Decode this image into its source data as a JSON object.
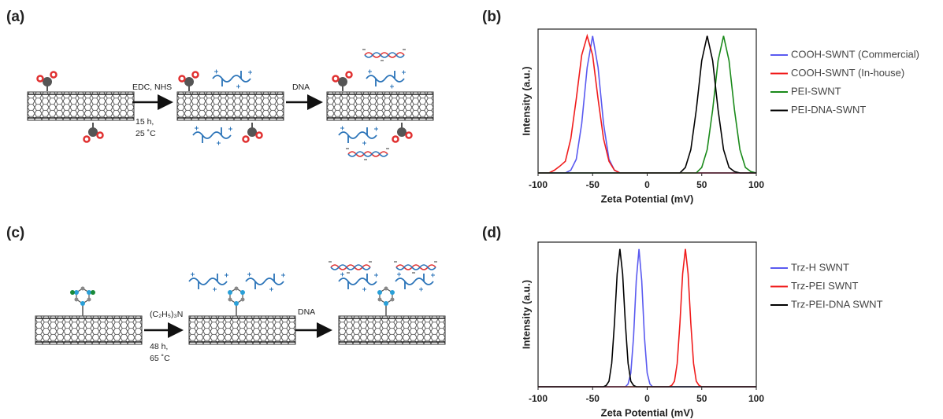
{
  "panels": {
    "a": "(a)",
    "b": "(b)",
    "c": "(c)",
    "d": "(d)"
  },
  "scheme_a": {
    "reagent": "EDC, NHS",
    "time": "15 h,",
    "temp": "25 ˚C",
    "step2": "DNA"
  },
  "scheme_c": {
    "reagent": "(C₂H₅)₃N",
    "time": "48 h,",
    "temp": "65 ˚C",
    "step2": "DNA"
  },
  "chart_data": [
    {
      "type": "line",
      "x_label": "Zeta Potential (mV)",
      "y_label": "Intensity (a.u.)",
      "x": [
        -100,
        -95,
        -90,
        -85,
        -80,
        -75,
        -70,
        -65,
        -60,
        -55,
        -50,
        -45,
        -40,
        -35,
        -30,
        -25,
        -20,
        -15,
        -10,
        -5,
        0,
        5,
        10,
        15,
        20,
        25,
        30,
        35,
        40,
        45,
        50,
        55,
        60,
        65,
        70,
        75,
        80,
        85,
        90,
        95,
        100
      ],
      "series": [
        {
          "name": "COOH-SWNT (Commercial)",
          "color": "#5a5af0",
          "values": [
            0,
            0,
            0,
            0,
            0,
            0,
            0.02,
            0.1,
            0.36,
            0.77,
            1,
            0.77,
            0.36,
            0.1,
            0.02,
            0,
            0,
            0,
            0,
            0,
            0,
            0,
            0,
            0,
            0,
            0,
            0,
            0,
            0,
            0,
            0,
            0,
            0,
            0,
            0,
            0,
            0,
            0,
            0,
            0,
            0
          ]
        },
        {
          "name": "COOH-SWNT (In-house)",
          "color": "#f01c1c",
          "values": [
            0,
            0,
            0,
            0.02,
            0.05,
            0.085,
            0.25,
            0.54,
            0.86,
            1,
            0.86,
            0.54,
            0.25,
            0.085,
            0.02,
            0,
            0,
            0,
            0,
            0,
            0,
            0,
            0,
            0,
            0,
            0,
            0,
            0,
            0,
            0,
            0,
            0,
            0,
            0,
            0,
            0,
            0,
            0,
            0,
            0,
            0
          ]
        },
        {
          "name": "PEI-SWNT",
          "color": "#1a8a1a",
          "values": [
            0,
            0,
            0,
            0,
            0,
            0,
            0,
            0,
            0,
            0,
            0,
            0,
            0,
            0,
            0,
            0,
            0,
            0,
            0,
            0,
            0,
            0,
            0,
            0,
            0,
            0,
            0,
            0,
            0,
            0,
            0.04,
            0.17,
            0.46,
            0.82,
            1,
            0.82,
            0.46,
            0.17,
            0.04,
            0.01,
            0
          ]
        },
        {
          "name": "PEI-DNA-SWNT",
          "color": "#000000",
          "values": [
            0,
            0,
            0,
            0,
            0,
            0,
            0,
            0,
            0,
            0,
            0,
            0,
            0,
            0,
            0,
            0,
            0,
            0,
            0,
            0,
            0,
            0,
            0,
            0,
            0,
            0,
            0,
            0.04,
            0.17,
            0.46,
            0.82,
            1,
            0.82,
            0.46,
            0.17,
            0.04,
            0.01,
            0,
            0,
            0,
            0
          ]
        }
      ],
      "xlim": [
        -100,
        100
      ],
      "xticks": [
        -100,
        -50,
        0,
        50,
        100
      ],
      "ylim": [
        0,
        1.05
      ],
      "legend": "right"
    },
    {
      "type": "line",
      "x_label": "Zeta Potential (mV)",
      "y_label": "Intensity (a.u.)",
      "x": [
        -100,
        -45,
        -42.5,
        -40,
        -37.5,
        -35,
        -32.5,
        -30,
        -27.5,
        -25,
        -22.5,
        -20,
        -17.5,
        -15,
        -12.5,
        -10,
        -7.5,
        -5,
        -2.5,
        0,
        2.5,
        5,
        7.5,
        10,
        12.5,
        15,
        17.5,
        20,
        22.5,
        25,
        27.5,
        30,
        32.5,
        35,
        37.5,
        40,
        42.5,
        45,
        47.5,
        50,
        52.5,
        55,
        100
      ],
      "series": [
        {
          "name": "Trz-H SWNT",
          "color": "#5a5af0",
          "values": [
            0,
            0,
            0,
            0,
            0,
            0,
            0,
            0,
            0,
            0,
            0,
            0,
            0.02,
            0.1,
            0.36,
            0.77,
            1,
            0.77,
            0.36,
            0.1,
            0.02,
            0,
            0,
            0,
            0,
            0,
            0,
            0,
            0,
            0,
            0,
            0,
            0,
            0,
            0,
            0,
            0,
            0,
            0,
            0,
            0,
            0,
            0
          ]
        },
        {
          "name": "Trz-PEI SWNT",
          "color": "#f01c1c",
          "values": [
            0,
            0,
            0,
            0,
            0,
            0,
            0,
            0,
            0,
            0,
            0,
            0,
            0,
            0,
            0,
            0,
            0,
            0,
            0,
            0,
            0,
            0,
            0,
            0,
            0,
            0,
            0,
            0,
            0.01,
            0.04,
            0.17,
            0.46,
            0.82,
            1,
            0.82,
            0.46,
            0.17,
            0.04,
            0.01,
            0,
            0,
            0,
            0
          ]
        },
        {
          "name": "Trz-PEI-DNA SWNT",
          "color": "#000000",
          "values": [
            0,
            0,
            0,
            0,
            0.01,
            0.04,
            0.17,
            0.46,
            0.82,
            1,
            0.82,
            0.46,
            0.17,
            0.04,
            0.01,
            0,
            0,
            0,
            0,
            0,
            0,
            0,
            0,
            0,
            0,
            0,
            0,
            0,
            0,
            0,
            0,
            0,
            0,
            0,
            0,
            0,
            0,
            0,
            0,
            0,
            0,
            0,
            0
          ]
        }
      ],
      "xlim": [
        -100,
        100
      ],
      "xticks": [
        -100,
        -50,
        0,
        50,
        100
      ],
      "ylim": [
        0,
        1.05
      ],
      "legend": "right"
    }
  ]
}
